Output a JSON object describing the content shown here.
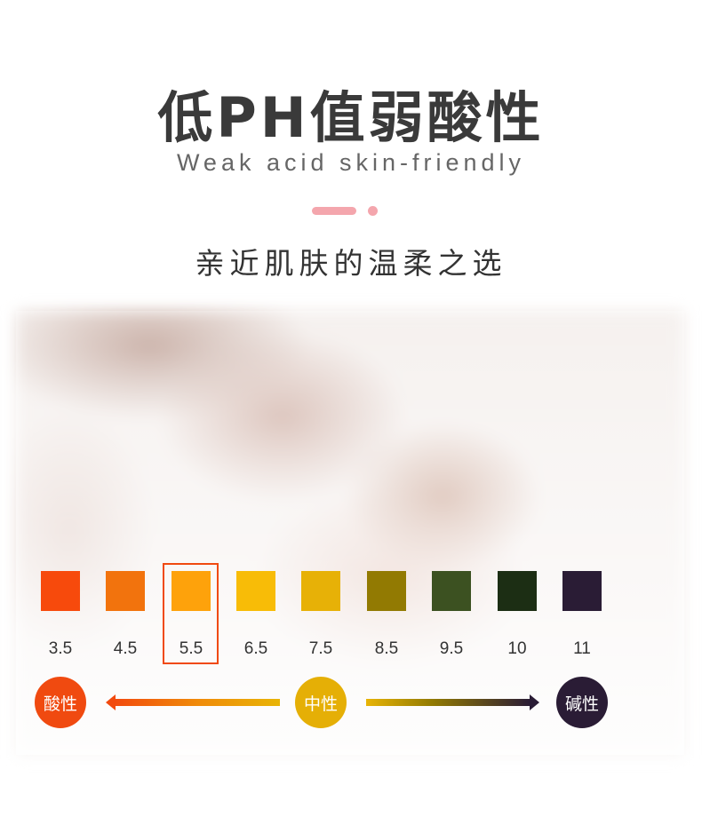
{
  "header": {
    "title": "低PH值弱酸性",
    "subtitle": "Weak acid skin-friendly",
    "tagline": "亲近肌肤的温柔之选"
  },
  "scale": {
    "highlighted": "5.5",
    "swatches": [
      {
        "value": "3.5",
        "color": "#f74a0c"
      },
      {
        "value": "4.5",
        "color": "#f2730d"
      },
      {
        "value": "5.5",
        "color": "#fea20b"
      },
      {
        "value": "6.5",
        "color": "#f8bc07"
      },
      {
        "value": "7.5",
        "color": "#e7b107"
      },
      {
        "value": "8.5",
        "color": "#927a02"
      },
      {
        "value": "9.5",
        "color": "#3c5121"
      },
      {
        "value": "10",
        "color": "#1c2e14"
      },
      {
        "value": "11",
        "color": "#2a1c35"
      }
    ]
  },
  "indicators": {
    "acid": {
      "label": "酸性",
      "color": "#f04a10"
    },
    "neutral": {
      "label": "中性",
      "color": "#e5af06"
    },
    "alkaline": {
      "label": "碱性",
      "color": "#2a1c35"
    }
  }
}
